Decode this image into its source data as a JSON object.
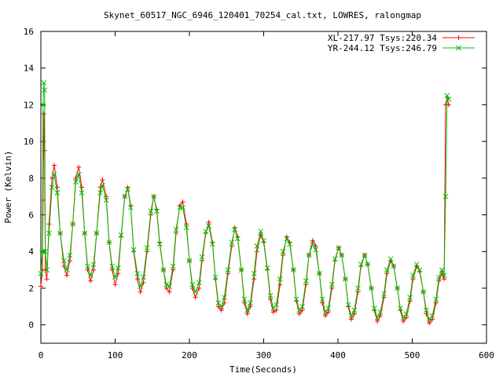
{
  "chart_data": {
    "type": "line",
    "title": "Skynet_60517_NGC_6946_120401_70254_cal.txt, LOWRES, ralongmap",
    "xlabel": "Time(Seconds)",
    "ylabel": "Power (Kelvin)",
    "xlim": [
      0,
      600
    ],
    "ylim": [
      -1,
      16
    ],
    "xticks": [
      0,
      100,
      200,
      300,
      400,
      500,
      600
    ],
    "yticks": [
      0,
      2,
      4,
      6,
      8,
      10,
      12,
      14,
      16
    ],
    "grid": false,
    "legend_position": "top-right",
    "series": [
      {
        "name": "XL-217.97 Tsys:220.34",
        "color": "#ff0000",
        "marker": "+",
        "points": [
          [
            0,
            2.1
          ],
          [
            2,
            3.0
          ],
          [
            3,
            6.8
          ],
          [
            4,
            11.5
          ],
          [
            5,
            9.5
          ],
          [
            6,
            3.0
          ],
          [
            8,
            2.5
          ],
          [
            11,
            5.5
          ],
          [
            15,
            8.0
          ],
          [
            18,
            8.7
          ],
          [
            22,
            7.5
          ],
          [
            26,
            5.0
          ],
          [
            31,
            3.2
          ],
          [
            35,
            2.7
          ],
          [
            39,
            3.5
          ],
          [
            43,
            5.5
          ],
          [
            47,
            8.0
          ],
          [
            51,
            8.6
          ],
          [
            55,
            7.5
          ],
          [
            59,
            5.0
          ],
          [
            63,
            3.0
          ],
          [
            67,
            2.4
          ],
          [
            71,
            3.0
          ],
          [
            75,
            5.0
          ],
          [
            80,
            7.5
          ],
          [
            83,
            7.9
          ],
          [
            88,
            7.0
          ],
          [
            92,
            4.5
          ],
          [
            96,
            3.0
          ],
          [
            100,
            2.2
          ],
          [
            104,
            2.8
          ],
          [
            108,
            4.8
          ],
          [
            113,
            7.0
          ],
          [
            117,
            7.5
          ],
          [
            121,
            6.5
          ],
          [
            125,
            4.0
          ],
          [
            130,
            2.5
          ],
          [
            134,
            1.8
          ],
          [
            138,
            2.3
          ],
          [
            143,
            4.0
          ],
          [
            148,
            6.0
          ],
          [
            152,
            7.0
          ],
          [
            156,
            6.3
          ],
          [
            160,
            4.5
          ],
          [
            165,
            3.0
          ],
          [
            169,
            2.0
          ],
          [
            173,
            1.8
          ],
          [
            178,
            3.0
          ],
          [
            182,
            5.0
          ],
          [
            187,
            6.5
          ],
          [
            191,
            6.7
          ],
          [
            196,
            5.5
          ],
          [
            200,
            3.5
          ],
          [
            204,
            2.0
          ],
          [
            208,
            1.5
          ],
          [
            213,
            2.0
          ],
          [
            217,
            3.5
          ],
          [
            222,
            5.0
          ],
          [
            226,
            5.6
          ],
          [
            231,
            4.5
          ],
          [
            235,
            2.5
          ],
          [
            239,
            1.0
          ],
          [
            243,
            0.8
          ],
          [
            247,
            1.2
          ],
          [
            252,
            2.8
          ],
          [
            257,
            4.3
          ],
          [
            261,
            5.3
          ],
          [
            265,
            4.8
          ],
          [
            270,
            3.0
          ],
          [
            274,
            1.2
          ],
          [
            278,
            0.6
          ],
          [
            282,
            1.0
          ],
          [
            287,
            2.5
          ],
          [
            291,
            4.0
          ],
          [
            296,
            4.9
          ],
          [
            300,
            4.5
          ],
          [
            305,
            3.0
          ],
          [
            309,
            1.4
          ],
          [
            313,
            0.7
          ],
          [
            317,
            0.8
          ],
          [
            322,
            2.2
          ],
          [
            326,
            3.8
          ],
          [
            331,
            4.8
          ],
          [
            335,
            4.5
          ],
          [
            340,
            3.0
          ],
          [
            344,
            1.3
          ],
          [
            348,
            0.6
          ],
          [
            352,
            0.8
          ],
          [
            357,
            2.2
          ],
          [
            361,
            3.8
          ],
          [
            366,
            4.6
          ],
          [
            370,
            4.3
          ],
          [
            375,
            2.8
          ],
          [
            379,
            1.2
          ],
          [
            383,
            0.5
          ],
          [
            387,
            0.7
          ],
          [
            392,
            2.0
          ],
          [
            396,
            3.5
          ],
          [
            401,
            4.2
          ],
          [
            405,
            3.8
          ],
          [
            410,
            2.5
          ],
          [
            414,
            1.0
          ],
          [
            418,
            0.3
          ],
          [
            422,
            0.6
          ],
          [
            427,
            1.8
          ],
          [
            431,
            3.2
          ],
          [
            436,
            3.8
          ],
          [
            440,
            3.3
          ],
          [
            445,
            2.0
          ],
          [
            449,
            0.8
          ],
          [
            453,
            0.2
          ],
          [
            457,
            0.5
          ],
          [
            462,
            1.5
          ],
          [
            466,
            2.8
          ],
          [
            471,
            3.5
          ],
          [
            475,
            3.2
          ],
          [
            480,
            2.0
          ],
          [
            484,
            0.8
          ],
          [
            488,
            0.2
          ],
          [
            492,
            0.4
          ],
          [
            497,
            1.3
          ],
          [
            501,
            2.5
          ],
          [
            506,
            3.2
          ],
          [
            510,
            2.9
          ],
          [
            515,
            1.8
          ],
          [
            519,
            0.6
          ],
          [
            523,
            0.1
          ],
          [
            527,
            0.3
          ],
          [
            532,
            1.2
          ],
          [
            536,
            2.4
          ],
          [
            540,
            2.8
          ],
          [
            543,
            2.5
          ],
          [
            545,
            12.0
          ],
          [
            547,
            12.4
          ],
          [
            549,
            12.0
          ]
        ]
      },
      {
        "name": "YR-244.12 Tsys:246.79",
        "color": "#00c000",
        "marker": "x",
        "points": [
          [
            0,
            2.8
          ],
          [
            2,
            4.0
          ],
          [
            3,
            12.0
          ],
          [
            4,
            13.2
          ],
          [
            5,
            12.8
          ],
          [
            6,
            4.0
          ],
          [
            8,
            3.0
          ],
          [
            11,
            5.0
          ],
          [
            15,
            7.5
          ],
          [
            18,
            8.2
          ],
          [
            22,
            7.2
          ],
          [
            26,
            5.0
          ],
          [
            31,
            3.5
          ],
          [
            35,
            3.0
          ],
          [
            39,
            3.8
          ],
          [
            43,
            5.5
          ],
          [
            47,
            7.8
          ],
          [
            51,
            8.2
          ],
          [
            55,
            7.2
          ],
          [
            59,
            5.0
          ],
          [
            63,
            3.2
          ],
          [
            67,
            2.7
          ],
          [
            71,
            3.3
          ],
          [
            75,
            5.0
          ],
          [
            80,
            7.2
          ],
          [
            83,
            7.6
          ],
          [
            88,
            6.8
          ],
          [
            92,
            4.5
          ],
          [
            96,
            3.2
          ],
          [
            100,
            2.6
          ],
          [
            104,
            3.1
          ],
          [
            108,
            4.9
          ],
          [
            113,
            7.0
          ],
          [
            117,
            7.4
          ],
          [
            121,
            6.4
          ],
          [
            125,
            4.1
          ],
          [
            130,
            2.8
          ],
          [
            134,
            2.1
          ],
          [
            138,
            2.6
          ],
          [
            143,
            4.2
          ],
          [
            148,
            6.2
          ],
          [
            152,
            7.0
          ],
          [
            156,
            6.2
          ],
          [
            160,
            4.4
          ],
          [
            165,
            3.0
          ],
          [
            169,
            2.2
          ],
          [
            173,
            2.1
          ],
          [
            178,
            3.2
          ],
          [
            182,
            5.2
          ],
          [
            187,
            6.4
          ],
          [
            191,
            6.4
          ],
          [
            196,
            5.3
          ],
          [
            200,
            3.5
          ],
          [
            204,
            2.2
          ],
          [
            208,
            1.8
          ],
          [
            213,
            2.3
          ],
          [
            217,
            3.7
          ],
          [
            222,
            5.1
          ],
          [
            226,
            5.4
          ],
          [
            231,
            4.4
          ],
          [
            235,
            2.6
          ],
          [
            239,
            1.2
          ],
          [
            243,
            1.0
          ],
          [
            247,
            1.5
          ],
          [
            252,
            3.0
          ],
          [
            257,
            4.5
          ],
          [
            261,
            5.2
          ],
          [
            265,
            4.7
          ],
          [
            270,
            3.0
          ],
          [
            274,
            1.4
          ],
          [
            278,
            0.8
          ],
          [
            282,
            1.2
          ],
          [
            287,
            2.8
          ],
          [
            291,
            4.3
          ],
          [
            296,
            5.1
          ],
          [
            300,
            4.6
          ],
          [
            305,
            3.1
          ],
          [
            309,
            1.6
          ],
          [
            313,
            0.9
          ],
          [
            317,
            1.1
          ],
          [
            322,
            2.5
          ],
          [
            326,
            4.0
          ],
          [
            331,
            4.7
          ],
          [
            335,
            4.4
          ],
          [
            340,
            3.0
          ],
          [
            344,
            1.4
          ],
          [
            348,
            0.8
          ],
          [
            352,
            1.0
          ],
          [
            357,
            2.4
          ],
          [
            361,
            3.8
          ],
          [
            366,
            4.4
          ],
          [
            370,
            4.1
          ],
          [
            375,
            2.8
          ],
          [
            379,
            1.4
          ],
          [
            383,
            0.7
          ],
          [
            387,
            0.9
          ],
          [
            392,
            2.2
          ],
          [
            396,
            3.6
          ],
          [
            401,
            4.2
          ],
          [
            405,
            3.8
          ],
          [
            410,
            2.5
          ],
          [
            414,
            1.1
          ],
          [
            418,
            0.5
          ],
          [
            422,
            0.8
          ],
          [
            427,
            2.0
          ],
          [
            431,
            3.3
          ],
          [
            436,
            3.8
          ],
          [
            440,
            3.3
          ],
          [
            445,
            2.0
          ],
          [
            449,
            0.9
          ],
          [
            453,
            0.4
          ],
          [
            457,
            0.7
          ],
          [
            462,
            1.7
          ],
          [
            466,
            3.0
          ],
          [
            471,
            3.6
          ],
          [
            475,
            3.2
          ],
          [
            480,
            2.0
          ],
          [
            484,
            0.9
          ],
          [
            488,
            0.4
          ],
          [
            492,
            0.6
          ],
          [
            497,
            1.5
          ],
          [
            501,
            2.7
          ],
          [
            506,
            3.3
          ],
          [
            510,
            3.0
          ],
          [
            515,
            1.8
          ],
          [
            519,
            0.8
          ],
          [
            523,
            0.3
          ],
          [
            527,
            0.5
          ],
          [
            532,
            1.4
          ],
          [
            536,
            2.6
          ],
          [
            540,
            3.0
          ],
          [
            543,
            2.7
          ],
          [
            545,
            7.0
          ],
          [
            547,
            12.5
          ],
          [
            549,
            12.3
          ]
        ]
      }
    ]
  }
}
